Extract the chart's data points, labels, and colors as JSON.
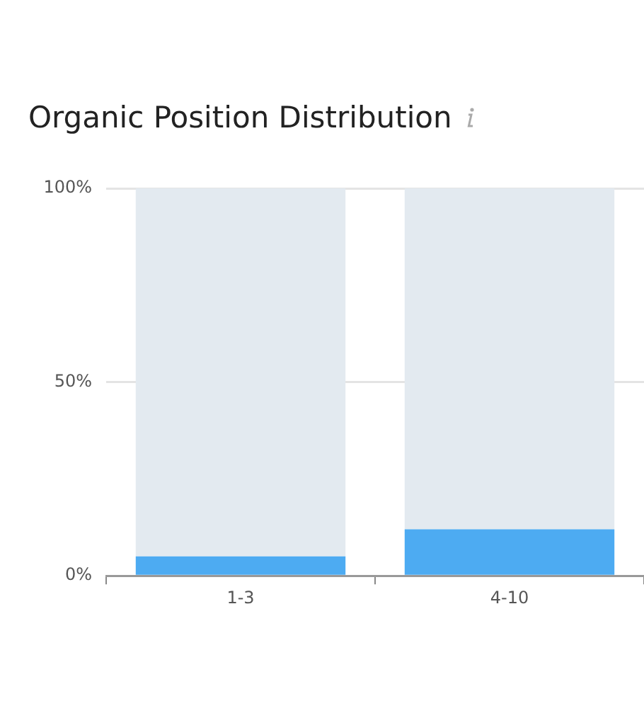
{
  "chart_data": {
    "type": "bar",
    "title": "Organic Position Distribution",
    "categories": [
      "1-3",
      "4-10"
    ],
    "series": [
      {
        "color": "#4dabf2",
        "values": [
          5,
          12
        ]
      },
      {
        "color": "#e3eaf0",
        "values": [
          95,
          88
        ]
      }
    ],
    "stacked": true,
    "ylim": [
      0,
      100
    ],
    "yticks": [
      {
        "value": 0,
        "label": "0%"
      },
      {
        "value": 50,
        "label": "50%"
      },
      {
        "value": 100,
        "label": "100%"
      }
    ],
    "grid": "y",
    "legend": false
  }
}
